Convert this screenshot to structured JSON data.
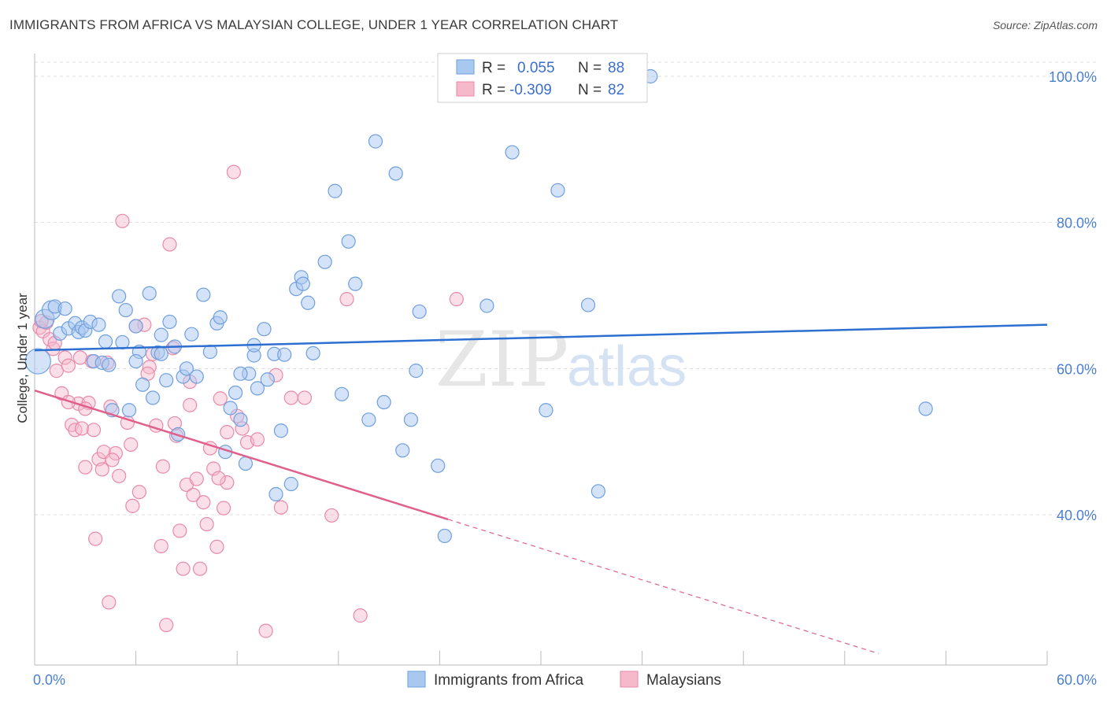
{
  "header": {
    "title": "IMMIGRANTS FROM AFRICA VS MALAYSIAN COLLEGE, UNDER 1 YEAR CORRELATION CHART",
    "source": "Source: ZipAtlas.com"
  },
  "watermark": {
    "zip": "ZIP",
    "atlas": "atlas"
  },
  "legend": {
    "series1": {
      "r_label": "R =",
      "r_value": "0.055",
      "n_label": "N =",
      "n_value": "88"
    },
    "series2": {
      "r_label": "R =",
      "r_value": "-0.309",
      "n_label": "N =",
      "n_value": "82"
    }
  },
  "colors": {
    "blue_fill": "#a9c8ef",
    "blue_stroke": "#6f9fde",
    "blue_line": "#2c6fd0",
    "pink_fill": "#f6b8cb",
    "pink_stroke": "#e98aa8",
    "pink_line": "#e0608c"
  },
  "chart_data": {
    "type": "scatter",
    "title": "IMMIGRANTS FROM AFRICA VS MALAYSIAN COLLEGE, UNDER 1 YEAR CORRELATION CHART",
    "xlabel": "",
    "ylabel": "College, Under 1 year",
    "xlim": [
      0,
      60
    ],
    "ylim": [
      20,
      104
    ],
    "x_tick_labels": [
      "0.0%",
      "60.0%"
    ],
    "y_ticks": [
      40,
      60,
      80,
      100
    ],
    "y_tick_labels": [
      "40.0%",
      "60.0%",
      "80.0%",
      "100.0%"
    ],
    "series": [
      {
        "name": "Immigrants from Africa",
        "color": "#a9c8ef",
        "trend": {
          "x": [
            0,
            60
          ],
          "y": [
            62.5,
            66.0
          ],
          "dashed_from": null
        },
        "points": [
          [
            0.2,
            61.0
          ],
          [
            0.6,
            66.8
          ],
          [
            1.0,
            68.0
          ],
          [
            1.2,
            68.5
          ],
          [
            1.5,
            64.8
          ],
          [
            1.8,
            68.2
          ],
          [
            2.0,
            65.5
          ],
          [
            2.4,
            66.2
          ],
          [
            2.6,
            65.0
          ],
          [
            2.8,
            65.6
          ],
          [
            3.0,
            65.2
          ],
          [
            3.3,
            66.4
          ],
          [
            3.5,
            61.0
          ],
          [
            3.8,
            66.0
          ],
          [
            4.0,
            60.8
          ],
          [
            4.2,
            63.7
          ],
          [
            4.4,
            60.5
          ],
          [
            4.6,
            54.3
          ],
          [
            5.0,
            69.9
          ],
          [
            5.2,
            63.6
          ],
          [
            5.4,
            68.0
          ],
          [
            5.6,
            54.3
          ],
          [
            6.0,
            65.8
          ],
          [
            6.2,
            62.3
          ],
          [
            6.4,
            57.8
          ],
          [
            6.8,
            70.3
          ],
          [
            7.0,
            56.0
          ],
          [
            7.3,
            62.2
          ],
          [
            7.5,
            64.6
          ],
          [
            7.8,
            58.4
          ],
          [
            8.0,
            66.4
          ],
          [
            8.3,
            63.0
          ],
          [
            8.5,
            51.0
          ],
          [
            8.8,
            58.9
          ],
          [
            9.0,
            60.0
          ],
          [
            9.3,
            64.7
          ],
          [
            9.6,
            58.9
          ],
          [
            10.0,
            70.1
          ],
          [
            10.4,
            62.3
          ],
          [
            10.8,
            66.2
          ],
          [
            11.0,
            67.0
          ],
          [
            11.6,
            54.6
          ],
          [
            11.9,
            56.7
          ],
          [
            12.2,
            53.0
          ],
          [
            12.5,
            47.0
          ],
          [
            12.7,
            59.3
          ],
          [
            13.0,
            61.8
          ],
          [
            13.2,
            57.3
          ],
          [
            13.6,
            65.4
          ],
          [
            13.8,
            58.5
          ],
          [
            14.2,
            62.0
          ],
          [
            14.6,
            51.5
          ],
          [
            14.8,
            61.9
          ],
          [
            15.2,
            44.2
          ],
          [
            15.5,
            70.9
          ],
          [
            15.8,
            72.5
          ],
          [
            15.9,
            71.6
          ],
          [
            16.5,
            62.1
          ],
          [
            17.2,
            74.6
          ],
          [
            17.8,
            84.3
          ],
          [
            18.2,
            56.5
          ],
          [
            18.6,
            77.4
          ],
          [
            19.0,
            71.6
          ],
          [
            19.8,
            53.0
          ],
          [
            20.2,
            91.1
          ],
          [
            20.7,
            55.4
          ],
          [
            21.4,
            86.7
          ],
          [
            21.8,
            48.8
          ],
          [
            22.3,
            53.0
          ],
          [
            22.6,
            59.7
          ],
          [
            22.8,
            67.8
          ],
          [
            23.9,
            46.7
          ],
          [
            24.3,
            37.1
          ],
          [
            26.8,
            68.6
          ],
          [
            28.3,
            89.6
          ],
          [
            30.3,
            54.3
          ],
          [
            31.0,
            84.4
          ],
          [
            32.8,
            68.7
          ],
          [
            33.4,
            43.2
          ],
          [
            36.5,
            100.0
          ],
          [
            52.8,
            54.5
          ],
          [
            13.0,
            63.2
          ],
          [
            7.5,
            62.0
          ],
          [
            12.2,
            59.3
          ],
          [
            6.0,
            61.0
          ],
          [
            16.2,
            69.0
          ],
          [
            11.3,
            48.6
          ],
          [
            14.3,
            42.8
          ]
        ]
      },
      {
        "name": "Malaysians",
        "color": "#f6b8cb",
        "trend": {
          "x": [
            0,
            50.0
          ],
          "y": [
            57.0,
            21.0
          ],
          "dashed_from": 24.5
        },
        "points": [
          [
            0.3,
            65.6
          ],
          [
            0.5,
            65.1
          ],
          [
            0.7,
            66.3
          ],
          [
            0.9,
            64.0
          ],
          [
            1.1,
            62.7
          ],
          [
            1.3,
            59.7
          ],
          [
            1.6,
            56.6
          ],
          [
            1.8,
            61.5
          ],
          [
            2.0,
            60.4
          ],
          [
            2.2,
            52.3
          ],
          [
            2.4,
            51.6
          ],
          [
            2.6,
            55.2
          ],
          [
            2.8,
            51.8
          ],
          [
            3.0,
            46.5
          ],
          [
            3.2,
            55.3
          ],
          [
            3.4,
            61.0
          ],
          [
            3.5,
            51.6
          ],
          [
            3.6,
            36.7
          ],
          [
            3.8,
            47.6
          ],
          [
            4.0,
            46.2
          ],
          [
            4.1,
            48.6
          ],
          [
            4.4,
            28.0
          ],
          [
            4.5,
            54.8
          ],
          [
            4.8,
            48.4
          ],
          [
            5.0,
            45.3
          ],
          [
            5.2,
            80.2
          ],
          [
            5.5,
            52.6
          ],
          [
            5.8,
            41.2
          ],
          [
            6.2,
            43.1
          ],
          [
            6.5,
            66.0
          ],
          [
            6.8,
            60.2
          ],
          [
            7.0,
            62.0
          ],
          [
            7.2,
            52.2
          ],
          [
            7.5,
            35.7
          ],
          [
            7.8,
            24.9
          ],
          [
            8.0,
            77.0
          ],
          [
            8.2,
            62.8
          ],
          [
            8.4,
            50.8
          ],
          [
            8.6,
            37.8
          ],
          [
            8.8,
            32.6
          ],
          [
            9.0,
            44.1
          ],
          [
            9.2,
            55.0
          ],
          [
            9.4,
            42.7
          ],
          [
            9.6,
            44.9
          ],
          [
            9.8,
            32.6
          ],
          [
            10.0,
            41.7
          ],
          [
            10.2,
            38.7
          ],
          [
            10.4,
            49.1
          ],
          [
            10.6,
            46.3
          ],
          [
            10.8,
            35.6
          ],
          [
            11.0,
            55.9
          ],
          [
            11.2,
            40.9
          ],
          [
            11.4,
            44.4
          ],
          [
            11.8,
            86.9
          ],
          [
            12.0,
            53.5
          ],
          [
            12.6,
            49.9
          ],
          [
            13.2,
            50.3
          ],
          [
            13.7,
            24.1
          ],
          [
            14.3,
            59.1
          ],
          [
            14.6,
            41.0
          ],
          [
            15.2,
            56.0
          ],
          [
            16.0,
            56.0
          ],
          [
            17.6,
            39.9
          ],
          [
            18.5,
            69.5
          ],
          [
            19.3,
            26.2
          ],
          [
            25.0,
            69.5
          ],
          [
            0.4,
            66.5
          ],
          [
            1.2,
            63.5
          ],
          [
            2.7,
            61.5
          ],
          [
            4.3,
            60.8
          ],
          [
            6.0,
            65.8
          ],
          [
            3.0,
            54.5
          ],
          [
            4.6,
            47.5
          ],
          [
            5.7,
            49.6
          ],
          [
            8.3,
            52.5
          ],
          [
            9.2,
            58.2
          ],
          [
            11.4,
            51.3
          ],
          [
            2.0,
            55.4
          ],
          [
            6.7,
            59.3
          ],
          [
            7.6,
            46.6
          ],
          [
            10.9,
            45.0
          ],
          [
            12.3,
            51.8
          ]
        ]
      }
    ]
  },
  "bottom_legend": [
    {
      "label": "Immigrants from Africa"
    },
    {
      "label": "Malaysians"
    }
  ]
}
